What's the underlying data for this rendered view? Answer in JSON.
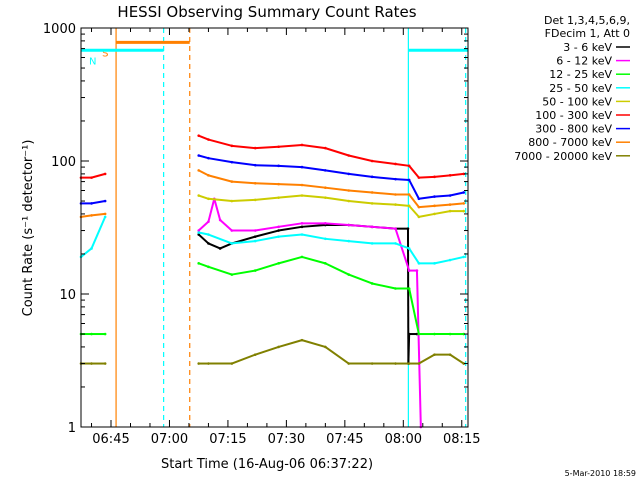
{
  "chart_data": {
    "type": "line",
    "title": "HESSI Observing Summary Count Rates",
    "xlabel": "Start Time (16-Aug-06 06:37:22)",
    "ylabel": "Count Rate (s⁻¹ detector⁻¹)",
    "yscale": "log",
    "ylim": [
      1,
      1000
    ],
    "xlim_minutes_after_06_00": [
      37.3,
      136.6
    ],
    "xticks": [
      {
        "label": "06:45",
        "value": 45
      },
      {
        "label": "07:00",
        "value": 60
      },
      {
        "label": "07:15",
        "value": 75
      },
      {
        "label": "07:30",
        "value": 90
      },
      {
        "label": "07:45",
        "value": 105
      },
      {
        "label": "08:00",
        "value": 120
      },
      {
        "label": "08:15",
        "value": 135
      }
    ],
    "yticks": [
      {
        "label": "1",
        "value": 1
      },
      {
        "label": "10",
        "value": 10
      },
      {
        "label": "100",
        "value": 100
      },
      {
        "label": "1000",
        "value": 1000
      }
    ],
    "legend_position": "right",
    "legend_header": [
      "Det 1,3,4,5,6,9,",
      "FDecim 1, Att 0"
    ],
    "series": [
      {
        "name": "3 - 6 keV",
        "color": "#000000",
        "x": [
          37.3,
          41,
          43.5,
          67.5,
          70,
          73,
          76,
          82,
          88,
          94,
          100,
          106,
          112,
          118,
          121.2,
          121.3,
          121.5,
          123.5
        ],
        "y": [
          null,
          null,
          null,
          28,
          24,
          22,
          24,
          27,
          30,
          32,
          33,
          33,
          32,
          31,
          31,
          3,
          5,
          5
        ]
      },
      {
        "name": "6 - 12 keV",
        "color": "#ff00ff",
        "x": [
          37.3,
          44,
          67.5,
          70,
          71.5,
          73,
          76,
          82,
          88,
          94,
          100,
          106,
          112,
          118,
          121.5,
          123.5,
          124.5
        ],
        "y": [
          null,
          null,
          30,
          35,
          52,
          36,
          30,
          30,
          32,
          34,
          34,
          33,
          32,
          31,
          15,
          15,
          1
        ]
      },
      {
        "name": "12 - 25 keV",
        "color": "#00ff00",
        "x": [
          37.3,
          40,
          43.5,
          67.5,
          70,
          76,
          82,
          88,
          94,
          100,
          106,
          112,
          118,
          121.5,
          124,
          128,
          132,
          135.5
        ],
        "y": [
          5,
          5,
          5,
          17,
          16,
          14,
          15,
          17,
          19,
          17,
          14,
          12,
          11,
          11,
          5,
          5,
          5,
          5
        ]
      },
      {
        "name": "25 - 50 keV",
        "color": "#00ffff",
        "x": [
          37.3,
          40,
          43.5,
          67.5,
          70,
          76,
          82,
          88,
          94,
          100,
          106,
          112,
          118,
          121.5,
          124,
          128,
          132,
          135.5
        ],
        "y": [
          19,
          22,
          38,
          29,
          28,
          24,
          25,
          27,
          28,
          26,
          25,
          24,
          24,
          22,
          17,
          17,
          18,
          19
        ]
      },
      {
        "name": "50 - 100 keV",
        "color": "#cccc00",
        "x": [
          37.3,
          43.5,
          67.5,
          70,
          76,
          82,
          88,
          94,
          100,
          106,
          112,
          118,
          121.5,
          124,
          128,
          132,
          135.5
        ],
        "y": [
          null,
          null,
          55,
          52,
          50,
          51,
          53,
          55,
          53,
          50,
          48,
          47,
          46,
          38,
          40,
          42,
          42
        ]
      },
      {
        "name": "100 - 300 keV",
        "color": "#ff0000",
        "x": [
          37.3,
          40,
          43.5,
          67.5,
          70,
          76,
          82,
          88,
          94,
          100,
          106,
          112,
          118,
          121.5,
          124,
          128,
          132,
          135.5
        ],
        "y": [
          75,
          75,
          80,
          155,
          145,
          130,
          125,
          128,
          132,
          125,
          110,
          100,
          95,
          92,
          75,
          76,
          78,
          80
        ]
      },
      {
        "name": "300 - 800 keV",
        "color": "#0000ff",
        "x": [
          37.3,
          40,
          43.5,
          67.5,
          70,
          76,
          82,
          88,
          94,
          100,
          106,
          112,
          118,
          121.5,
          124,
          128,
          132,
          135.5
        ],
        "y": [
          48,
          48,
          50,
          110,
          105,
          98,
          93,
          92,
          90,
          85,
          80,
          76,
          73,
          72,
          52,
          54,
          55,
          58
        ]
      },
      {
        "name": "800 - 7000 keV",
        "color": "#ff8000",
        "x": [
          37.3,
          40,
          43.5,
          67.5,
          70,
          76,
          82,
          88,
          94,
          100,
          106,
          112,
          118,
          121.5,
          124,
          128,
          132,
          135.5
        ],
        "y": [
          38,
          39,
          40,
          85,
          78,
          70,
          68,
          67,
          66,
          63,
          60,
          58,
          56,
          56,
          45,
          46,
          47,
          48
        ]
      },
      {
        "name": "7000 - 20000 keV",
        "color": "#808000",
        "x": [
          37.3,
          40,
          43.5,
          67.5,
          70,
          76,
          82,
          88,
          94,
          100,
          106,
          112,
          118,
          121.5,
          124,
          128,
          132,
          135.5
        ],
        "y": [
          3,
          3,
          3,
          3,
          3,
          3,
          3.5,
          4,
          4.5,
          4,
          3,
          3,
          3,
          3,
          3,
          3.5,
          3.5,
          3
        ]
      }
    ],
    "annotations": [
      {
        "label": "S",
        "color": "#ff8000",
        "x_start": 46.3,
        "x_end": 65.2,
        "y": 780
      },
      {
        "label": "N",
        "color": "#00ffff",
        "x_start": 37.3,
        "x_end": 58.5,
        "y": 680
      },
      {
        "label": "",
        "color": "#00ffff",
        "x_start": 121.3,
        "x_end": 136.6,
        "y": 680
      }
    ],
    "vlines": [
      {
        "x": 46.3,
        "color": "#ff8000",
        "style": "solid"
      },
      {
        "x": 58.5,
        "color": "#00ffff",
        "style": "dashed"
      },
      {
        "x": 65.2,
        "color": "#ff8000",
        "style": "dashed"
      },
      {
        "x": 121.3,
        "color": "#00ffff",
        "style": "solid"
      },
      {
        "x": 136.0,
        "color": "#00ffff",
        "style": "dashed"
      }
    ],
    "gaps_minutes": [
      [
        43.5,
        67.5
      ]
    ]
  },
  "footer_stamp": "5-Mar-2010 18:59"
}
